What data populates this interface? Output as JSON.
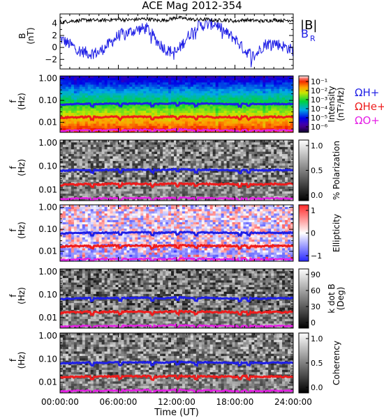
{
  "title": "ACE Mag 2012-354",
  "colors": {
    "B_total": "#000000",
    "B_R": "#1f1fe6",
    "H_plus": "#1f1fe6",
    "He_plus": "#ee1c1c",
    "O_plus": "#e61ee6"
  },
  "chart_data": [
    {
      "type": "line",
      "panel": "field",
      "ylabel": "B (nT)",
      "ylim": [
        -3.6,
        5.6
      ],
      "yticks": [
        4,
        2,
        0,
        -2
      ],
      "legend": [
        "|B|",
        "B_R"
      ],
      "legend_text": {
        "B_total": "|B|",
        "B_R_main": "B",
        "B_R_sub": "R"
      },
      "x": [
        "00:00",
        "01:00",
        "02:00",
        "03:00",
        "04:00",
        "05:00",
        "06:00",
        "07:00",
        "08:00",
        "09:00",
        "10:00",
        "11:00",
        "12:00",
        "13:00",
        "14:00",
        "15:00",
        "16:00",
        "17:00",
        "18:00",
        "19:00",
        "20:00",
        "21:00",
        "22:00",
        "23:00",
        "24:00"
      ],
      "series": [
        {
          "name": "|B|",
          "values": [
            4.2,
            4.4,
            4.5,
            4.6,
            4.5,
            4.6,
            4.7,
            4.6,
            4.7,
            4.8,
            4.5,
            4.6,
            5.0,
            4.8,
            4.6,
            4.7,
            4.5,
            4.6,
            4.4,
            4.6,
            4.5,
            4.4,
            4.6,
            4.5,
            4.6
          ]
        },
        {
          "name": "B_R",
          "values": [
            1.5,
            0.5,
            -0.5,
            -1.0,
            -0.8,
            0.5,
            2.0,
            2.5,
            3.0,
            3.2,
            1.0,
            -0.5,
            -0.8,
            1.5,
            3.5,
            3.8,
            4.0,
            2.5,
            1.5,
            -0.5,
            -1.5,
            0.5,
            0.8,
            0.2,
            -0.5
          ]
        }
      ]
    },
    {
      "type": "heatmap",
      "panel": "intensity",
      "ylabel": "f (Hz)",
      "yticks": [
        "1.00",
        "0.10",
        "0.01"
      ],
      "colorbar_label": "Intensity (nT²/Hz)",
      "colorbar_ticks": [
        "10⁻¹",
        "10⁻²",
        "10⁻³",
        "10⁻⁴",
        "10⁻⁵",
        "10⁻⁶"
      ],
      "colorbar_range": [
        1e-06,
        0.1
      ],
      "overlays": [
        "ΩH+",
        "ΩHe+",
        "ΩO+"
      ],
      "overlay_labels": {
        "H_plus": "ΩH+",
        "He_plus": "ΩHe+",
        "O_plus": "ΩO+"
      }
    },
    {
      "type": "heatmap",
      "panel": "polarization",
      "ylabel": "f (Hz)",
      "yticks": [
        "1.00",
        "0.10",
        "0.01"
      ],
      "colorbar_label": "% Polarization",
      "colorbar_ticks": [
        "1.0",
        "0.5",
        "0.0"
      ],
      "colorbar_range": [
        0,
        1
      ]
    },
    {
      "type": "heatmap",
      "panel": "ellipticity",
      "ylabel": "f (Hz)",
      "yticks": [
        "1.00",
        "0.10",
        "0.01"
      ],
      "colorbar_label": "Ellipticity",
      "colorbar_ticks": [
        "1",
        "0",
        "−1"
      ],
      "colorbar_range": [
        -1,
        1
      ]
    },
    {
      "type": "heatmap",
      "panel": "kdotb",
      "ylabel": "f (Hz)",
      "yticks": [
        "1.00",
        "0.10",
        "0.01"
      ],
      "colorbar_label": "k dot B (Deg)",
      "colorbar_ticks": [
        "90",
        "60",
        "30",
        "0"
      ],
      "colorbar_range": [
        0,
        90
      ]
    },
    {
      "type": "heatmap",
      "panel": "coherency",
      "ylabel": "f (Hz)",
      "yticks": [
        "1.00",
        "0.10",
        "0.01"
      ],
      "colorbar_label": "Coherency",
      "colorbar_ticks": [
        "1.0",
        "0.5",
        "0.0"
      ],
      "colorbar_range": [
        0,
        1
      ]
    }
  ],
  "gyrofrequency_hz": {
    "x": [
      "00:00",
      "01:00",
      "02:00",
      "03:00",
      "04:00",
      "05:00",
      "06:00",
      "07:00",
      "08:00",
      "09:00",
      "10:00",
      "11:00",
      "12:00",
      "13:00",
      "14:00",
      "15:00",
      "16:00",
      "17:00",
      "18:00",
      "19:00",
      "20:00",
      "21:00",
      "22:00",
      "23:00",
      "24:00"
    ],
    "H_plus": [
      0.064,
      0.067,
      0.069,
      0.07,
      0.069,
      0.07,
      0.072,
      0.07,
      0.072,
      0.073,
      0.069,
      0.07,
      0.076,
      0.073,
      0.07,
      0.072,
      0.069,
      0.07,
      0.067,
      0.07,
      0.069,
      0.067,
      0.07,
      0.069,
      0.07
    ],
    "He_plus": [
      0.016,
      0.017,
      0.017,
      0.018,
      0.017,
      0.018,
      0.018,
      0.018,
      0.018,
      0.018,
      0.017,
      0.018,
      0.019,
      0.018,
      0.018,
      0.018,
      0.017,
      0.018,
      0.017,
      0.018,
      0.017,
      0.017,
      0.018,
      0.017,
      0.018
    ],
    "O_plus": [
      0.004,
      0.0042,
      0.0043,
      0.0044,
      0.0043,
      0.0044,
      0.0045,
      0.0044,
      0.0045,
      0.0046,
      0.0043,
      0.0044,
      0.0048,
      0.0046,
      0.0044,
      0.0045,
      0.0043,
      0.0044,
      0.0042,
      0.0044,
      0.0043,
      0.0042,
      0.0044,
      0.0043,
      0.0044
    ]
  },
  "xaxis": {
    "label": "Time (UT)",
    "ticks": [
      "00:00:00",
      "06:00:00",
      "12:00:00",
      "18:00:00",
      "24:00:00"
    ]
  }
}
